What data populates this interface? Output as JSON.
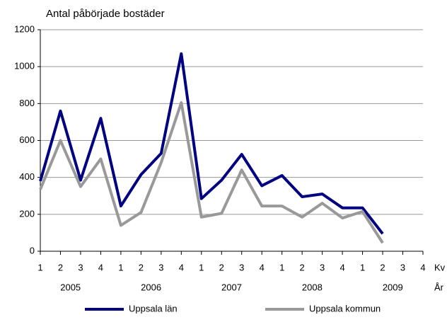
{
  "chart_data": {
    "type": "line",
    "title": "Antal påbörjade bostäder",
    "categories": [
      "1",
      "2",
      "3",
      "4",
      "1",
      "2",
      "3",
      "4",
      "1",
      "2",
      "3",
      "4",
      "1",
      "2",
      "3",
      "4",
      "1",
      "2",
      "3",
      "4"
    ],
    "years": [
      "2005",
      "2006",
      "2007",
      "2008",
      "2009"
    ],
    "x_label": "Kv",
    "year_label": "År",
    "series": [
      {
        "name": "Uppsala län",
        "color": "#000080",
        "values": [
          380,
          760,
          385,
          720,
          245,
          415,
          530,
          1070,
          285,
          385,
          525,
          355,
          410,
          295,
          310,
          235,
          235,
          95,
          null,
          null
        ]
      },
      {
        "name": "Uppsala kommun",
        "color": "#999999",
        "values": [
          335,
          600,
          350,
          500,
          140,
          210,
          480,
          805,
          185,
          205,
          440,
          245,
          245,
          185,
          260,
          180,
          215,
          45,
          null,
          null
        ]
      }
    ],
    "ylim": [
      0,
      1200
    ],
    "yticks": [
      0,
      200,
      400,
      600,
      800,
      1000,
      1200
    ],
    "grid": true
  }
}
